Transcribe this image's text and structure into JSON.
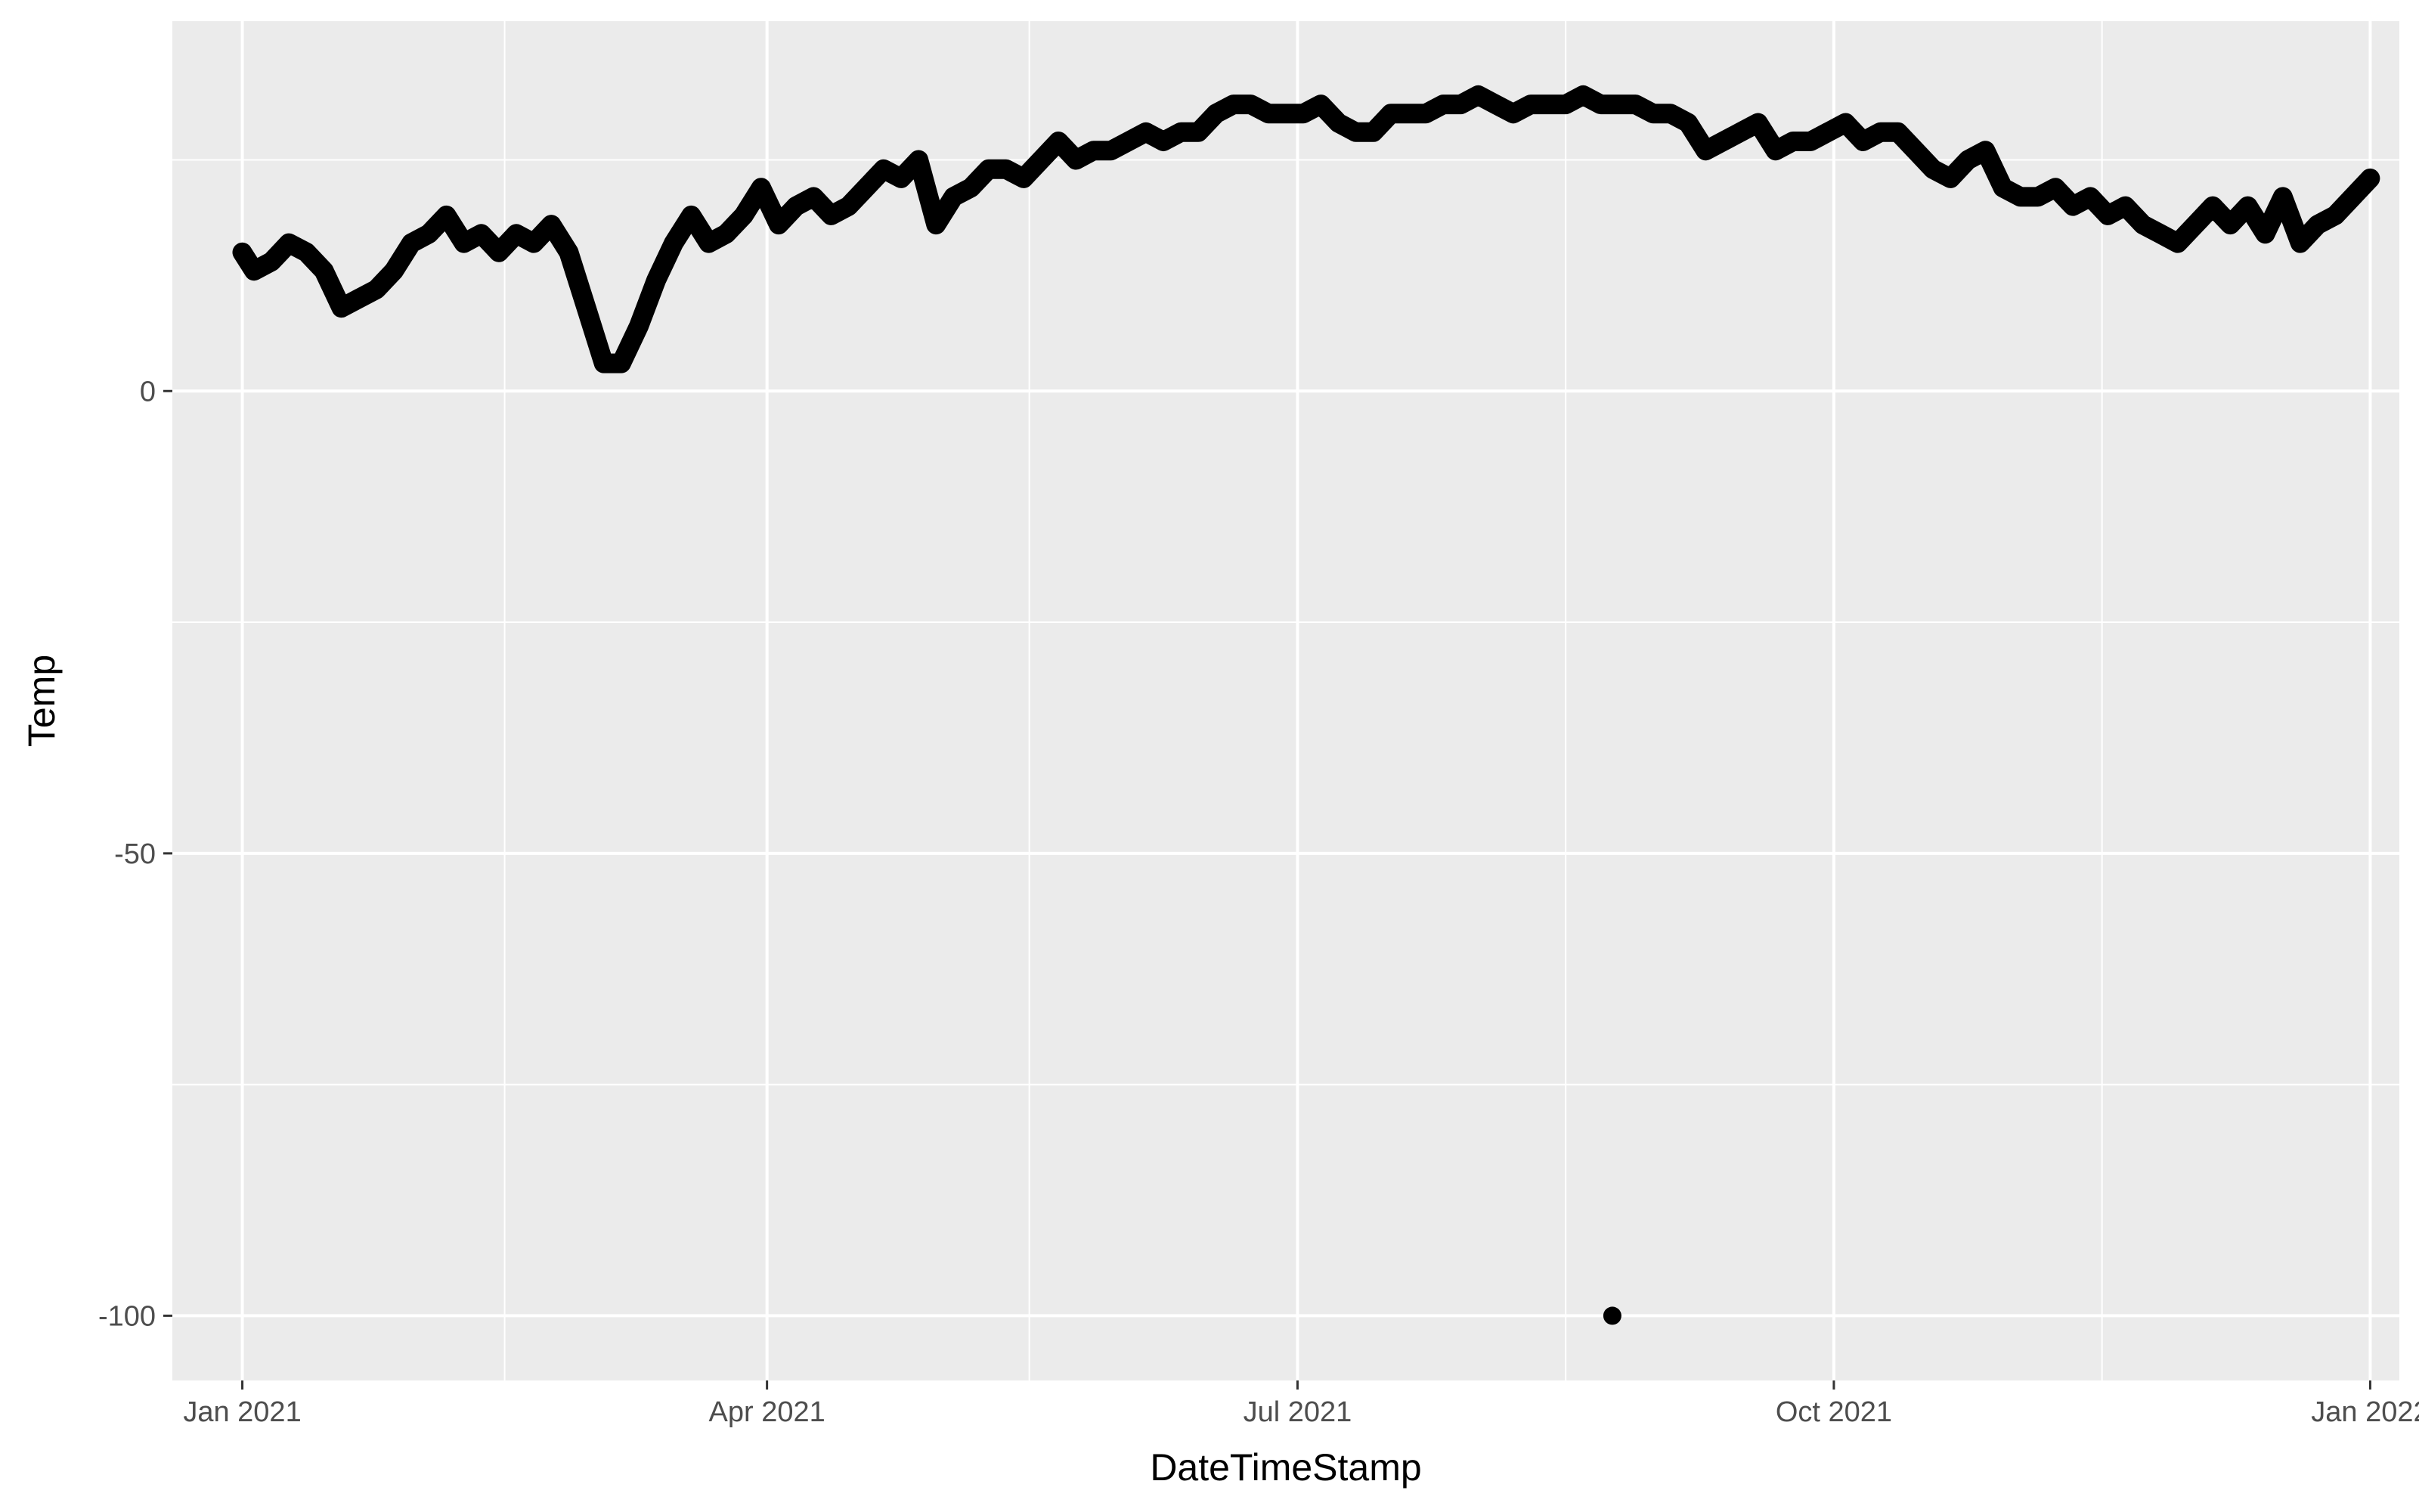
{
  "chart_data": {
    "type": "scatter",
    "title": "",
    "xlabel": "DateTimeStamp",
    "ylabel": "Temp",
    "grid": true,
    "legend": "none",
    "xlim": [
      "2020-12-20",
      "2022-01-06"
    ],
    "ylim": [
      -107,
      40
    ],
    "x_ticks": [
      {
        "value": "2021-01-01",
        "label": "Jan 2021"
      },
      {
        "value": "2021-04-01",
        "label": "Apr 2021"
      },
      {
        "value": "2021-07-01",
        "label": "Jul 2021"
      },
      {
        "value": "2021-10-01",
        "label": "Oct 2021"
      },
      {
        "value": "2022-01-01",
        "label": "Jan 2022"
      }
    ],
    "x_minor_ticks": [
      "2021-02-15",
      "2021-05-16",
      "2021-08-16",
      "2021-11-16"
    ],
    "y_ticks": [
      {
        "value": 0,
        "label": "0"
      },
      {
        "value": -50,
        "label": "-50"
      },
      {
        "value": -100,
        "label": "-100"
      }
    ],
    "y_minor_ticks": [
      25,
      -25,
      -75
    ],
    "colors": {
      "panel": "#ebebeb",
      "grid": "#ffffff",
      "points": "#000000"
    },
    "series": [
      {
        "x": [
          "2021-01-01",
          "2021-01-03",
          "2021-01-06",
          "2021-01-09",
          "2021-01-12",
          "2021-01-15",
          "2021-01-18",
          "2021-01-21",
          "2021-01-24",
          "2021-01-27",
          "2021-01-30",
          "2021-02-02",
          "2021-02-05",
          "2021-02-08",
          "2021-02-11",
          "2021-02-14",
          "2021-02-17",
          "2021-02-20",
          "2021-02-23",
          "2021-02-26",
          "2021-03-01",
          "2021-03-04",
          "2021-03-07",
          "2021-03-10",
          "2021-03-13",
          "2021-03-16",
          "2021-03-19",
          "2021-03-22",
          "2021-03-25",
          "2021-03-28",
          "2021-03-31",
          "2021-04-03",
          "2021-04-06",
          "2021-04-09",
          "2021-04-12",
          "2021-04-15",
          "2021-04-18",
          "2021-04-21",
          "2021-04-24",
          "2021-04-27",
          "2021-04-30",
          "2021-05-03",
          "2021-05-06",
          "2021-05-09",
          "2021-05-12",
          "2021-05-15",
          "2021-05-18",
          "2021-05-21",
          "2021-05-24",
          "2021-05-27",
          "2021-05-30",
          "2021-06-02",
          "2021-06-05",
          "2021-06-08",
          "2021-06-11",
          "2021-06-14",
          "2021-06-17",
          "2021-06-20",
          "2021-06-23",
          "2021-06-26",
          "2021-06-29",
          "2021-07-02",
          "2021-07-05",
          "2021-07-08",
          "2021-07-11",
          "2021-07-14",
          "2021-07-17",
          "2021-07-20",
          "2021-07-23",
          "2021-07-26",
          "2021-07-29",
          "2021-08-01",
          "2021-08-04",
          "2021-08-07",
          "2021-08-10",
          "2021-08-13",
          "2021-08-16",
          "2021-08-19",
          "2021-08-22",
          "2021-08-25",
          "2021-08-28",
          "2021-08-31",
          "2021-09-03",
          "2021-09-06",
          "2021-09-09",
          "2021-09-12",
          "2021-09-15",
          "2021-09-18",
          "2021-09-21",
          "2021-09-24",
          "2021-09-27",
          "2021-09-30",
          "2021-10-03",
          "2021-10-06",
          "2021-10-09",
          "2021-10-12",
          "2021-10-15",
          "2021-10-18",
          "2021-10-21",
          "2021-10-24",
          "2021-10-27",
          "2021-10-30",
          "2021-11-02",
          "2021-11-05",
          "2021-11-08",
          "2021-11-11",
          "2021-11-14",
          "2021-11-17",
          "2021-11-20",
          "2021-11-23",
          "2021-11-26",
          "2021-11-29",
          "2021-12-02",
          "2021-12-05",
          "2021-12-08",
          "2021-12-11",
          "2021-12-14",
          "2021-12-17",
          "2021-12-20",
          "2021-12-23",
          "2021-12-26",
          "2021-12-29",
          "2022-01-01"
        ],
        "y": [
          15,
          13,
          14,
          16,
          15,
          13,
          9,
          10,
          11,
          13,
          16,
          17,
          19,
          16,
          17,
          15,
          17,
          16,
          18,
          15,
          9,
          3,
          3,
          7,
          12,
          16,
          19,
          16,
          17,
          19,
          22,
          18,
          20,
          21,
          19,
          20,
          22,
          24,
          23,
          25,
          18,
          21,
          22,
          24,
          24,
          23,
          25,
          27,
          25,
          26,
          26,
          27,
          28,
          27,
          28,
          28,
          30,
          31,
          31,
          30,
          30,
          30,
          31,
          29,
          28,
          28,
          30,
          30,
          30,
          31,
          31,
          32,
          31,
          30,
          31,
          31,
          31,
          32,
          31,
          31,
          31,
          30,
          30,
          29,
          26,
          27,
          28,
          29,
          26,
          27,
          27,
          28,
          29,
          27,
          28,
          28,
          26,
          24,
          23,
          25,
          26,
          22,
          21,
          21,
          22,
          20,
          21,
          19,
          20,
          18,
          17,
          16,
          18,
          20,
          18,
          20,
          17,
          21,
          16,
          18,
          19,
          21,
          23
        ]
      },
      {
        "x": [
          "2021-08-24"
        ],
        "y": [
          -100
        ]
      }
    ]
  }
}
